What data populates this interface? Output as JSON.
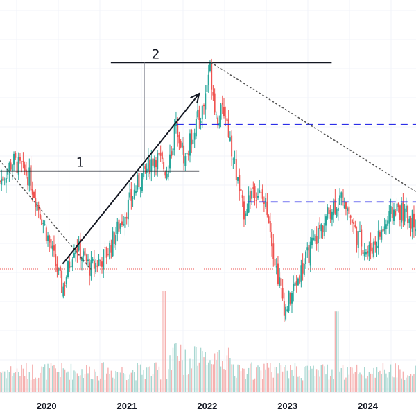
{
  "chart_data": {
    "type": "candlestick",
    "grid": true,
    "x_ticks": [
      "2020",
      "2021",
      "2022",
      "2023",
      "2024"
    ],
    "colors": {
      "up": "#26a69a",
      "down": "#ef5350",
      "up_vol": "#a8d7d1",
      "down_vol": "#f5b1b0",
      "dashed_level": "#2b2ee8",
      "support": "#ef5350",
      "annotation": "#131722"
    },
    "price_path": [
      [
        2019.42,
        0.52
      ],
      [
        2019.58,
        0.6
      ],
      [
        2019.78,
        0.54
      ],
      [
        2020.0,
        0.32
      ],
      [
        2020.2,
        0.1
      ],
      [
        2020.35,
        0.28
      ],
      [
        2020.55,
        0.18
      ],
      [
        2020.75,
        0.24
      ],
      [
        2020.95,
        0.38
      ],
      [
        2021.15,
        0.52
      ],
      [
        2021.35,
        0.62
      ],
      [
        2021.5,
        0.56
      ],
      [
        2021.62,
        0.75
      ],
      [
        2021.72,
        0.6
      ],
      [
        2021.85,
        0.74
      ],
      [
        2021.95,
        0.8
      ],
      [
        2022.03,
        0.97
      ],
      [
        2022.12,
        0.76
      ],
      [
        2022.22,
        0.8
      ],
      [
        2022.32,
        0.62
      ],
      [
        2022.45,
        0.4
      ],
      [
        2022.58,
        0.5
      ],
      [
        2022.75,
        0.42
      ],
      [
        2022.85,
        0.2
      ],
      [
        2022.97,
        0.02
      ],
      [
        2023.15,
        0.16
      ],
      [
        2023.35,
        0.3
      ],
      [
        2023.55,
        0.42
      ],
      [
        2023.7,
        0.46
      ],
      [
        2023.85,
        0.32
      ],
      [
        2024.0,
        0.24
      ],
      [
        2024.2,
        0.34
      ],
      [
        2024.35,
        0.42
      ],
      [
        2024.5,
        0.38
      ],
      [
        2024.6,
        0.37
      ]
    ],
    "annotations": {
      "labels": [
        "1",
        "2"
      ],
      "levels": [
        {
          "label": "1",
          "style": "solid",
          "y": 0.56,
          "x_from": 2019.42,
          "x_to": 2021.9
        },
        {
          "label": "2",
          "style": "solid",
          "y": 0.98,
          "x_from": 2020.8,
          "x_to": 2023.55
        },
        {
          "style": "dashed",
          "y": 0.74,
          "x_from": 2021.62,
          "x_to": 2024.6
        },
        {
          "style": "dashed",
          "y": 0.44,
          "x_from": 2022.5,
          "x_to": 2024.6
        },
        {
          "style": "dotted",
          "y": 0.18,
          "x_from": 2019.42,
          "x_to": 2024.6
        }
      ],
      "trendlines": [
        {
          "style": "dotted",
          "from": [
            2019.42,
            0.6
          ],
          "to": [
            2020.55,
            0.18
          ]
        },
        {
          "style": "dotted",
          "from": [
            2022.05,
            0.98
          ],
          "to": [
            2024.6,
            0.48
          ]
        }
      ],
      "arrows": [
        {
          "from": [
            2020.2,
            0.2
          ],
          "to": [
            2021.9,
            0.86
          ]
        }
      ]
    }
  }
}
